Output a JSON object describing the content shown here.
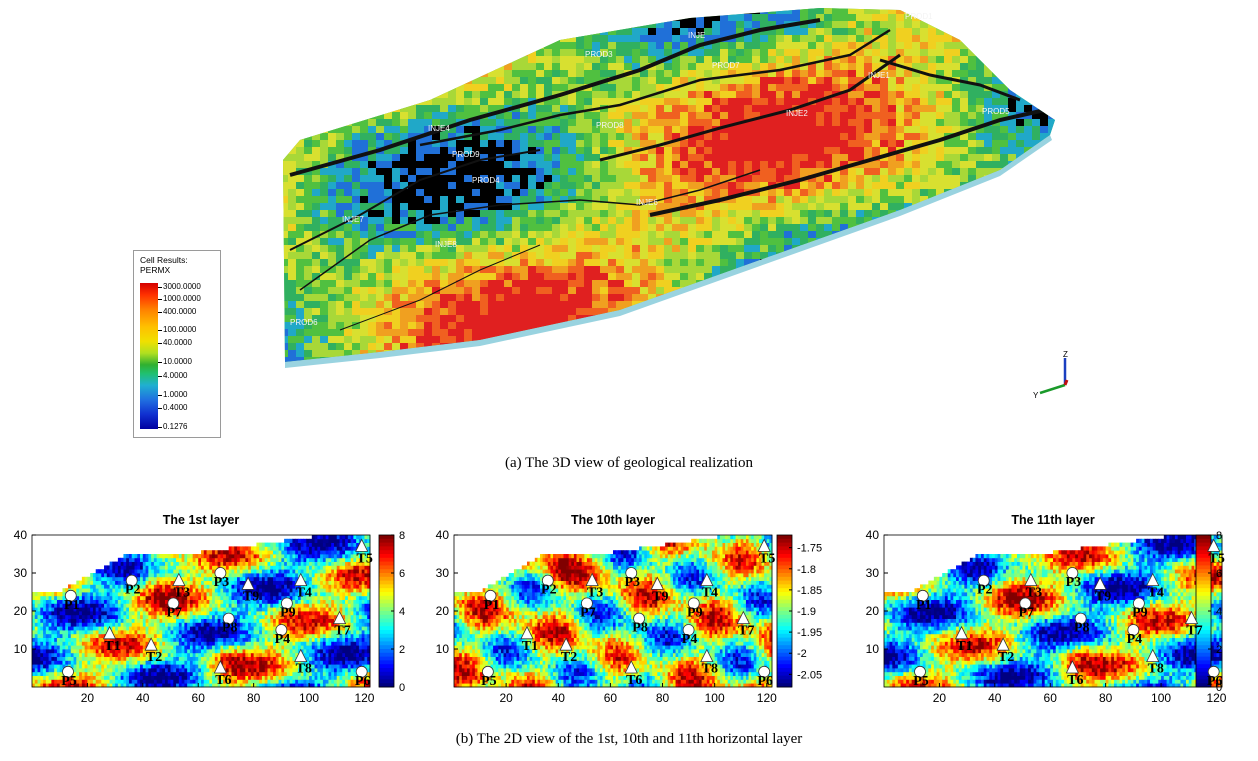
{
  "caption_a": "(a) The 3D view of geological realization",
  "caption_b": "(b) The 2D view of the 1st, 10th and 11th horizontal layer",
  "legend": {
    "title1": "Cell Results:",
    "title2": "PERMX",
    "ticks": [
      "3000.0000",
      "1000.0000",
      "400.0000",
      "100.0000",
      "40.0000",
      "10.0000",
      "4.0000",
      "1.0000",
      "0.4000",
      "0.1276"
    ]
  },
  "wells_3d": [
    "PROD3",
    "INJE",
    "PROD7",
    "INJE1",
    "PROD8",
    "INJE2",
    "PROD5",
    "INJE4",
    "PROD9",
    "PROD4",
    "INJE6",
    "INJE7",
    "INJE8",
    "PROD6",
    "PROD1"
  ],
  "axis_triad": {
    "z": "Z",
    "y": "Y"
  },
  "chart_data": [
    {
      "type": "heatmap",
      "title": "The 1st layer",
      "xticks": [
        20,
        40,
        60,
        80,
        100,
        120
      ],
      "yticks": [
        10,
        20,
        30,
        40
      ],
      "xlim": [
        0,
        122
      ],
      "ylim": [
        0,
        40
      ],
      "colorbar": {
        "min": 0,
        "max": 8,
        "ticks": [
          "0",
          "2",
          "4",
          "6",
          "8"
        ]
      },
      "producers": [
        {
          "label": "P1",
          "x": 14,
          "y": 24
        },
        {
          "label": "P2",
          "x": 36,
          "y": 28
        },
        {
          "label": "P3",
          "x": 68,
          "y": 30
        },
        {
          "label": "P4",
          "x": 90,
          "y": 15
        },
        {
          "label": "P5",
          "x": 13,
          "y": 4
        },
        {
          "label": "P6",
          "x": 119,
          "y": 4
        },
        {
          "label": "P7",
          "x": 51,
          "y": 22
        },
        {
          "label": "P8",
          "x": 71,
          "y": 18
        },
        {
          "label": "P9",
          "x": 92,
          "y": 22
        }
      ],
      "injectors": [
        {
          "label": "T1",
          "x": 28,
          "y": 14
        },
        {
          "label": "T2",
          "x": 43,
          "y": 11
        },
        {
          "label": "T3",
          "x": 53,
          "y": 28
        },
        {
          "label": "T4",
          "x": 97,
          "y": 28
        },
        {
          "label": "T5",
          "x": 119,
          "y": 37
        },
        {
          "label": "T6",
          "x": 68,
          "y": 5
        },
        {
          "label": "T7",
          "x": 111,
          "y": 18
        },
        {
          "label": "T8",
          "x": 97,
          "y": 8
        },
        {
          "label": "T9",
          "x": 78,
          "y": 27
        }
      ]
    },
    {
      "type": "heatmap",
      "title": "The 10th layer",
      "xticks": [
        20,
        40,
        60,
        80,
        100,
        120
      ],
      "yticks": [
        10,
        20,
        30,
        40
      ],
      "xlim": [
        0,
        122
      ],
      "ylim": [
        0,
        40
      ],
      "colorbar": {
        "min": -2.08,
        "max": -1.72,
        "ticks": [
          "-1.75",
          "-1.8",
          "-1.85",
          "-1.9",
          "-1.95",
          "-2",
          "-2.05"
        ]
      },
      "producers": [
        {
          "label": "P1",
          "x": 14,
          "y": 24
        },
        {
          "label": "P2",
          "x": 36,
          "y": 28
        },
        {
          "label": "P3",
          "x": 68,
          "y": 30
        },
        {
          "label": "P4",
          "x": 90,
          "y": 15
        },
        {
          "label": "P5",
          "x": 13,
          "y": 4
        },
        {
          "label": "P6",
          "x": 119,
          "y": 4
        },
        {
          "label": "P7",
          "x": 51,
          "y": 22
        },
        {
          "label": "P8",
          "x": 71,
          "y": 18
        },
        {
          "label": "P9",
          "x": 92,
          "y": 22
        }
      ],
      "injectors": [
        {
          "label": "T1",
          "x": 28,
          "y": 14
        },
        {
          "label": "T2",
          "x": 43,
          "y": 11
        },
        {
          "label": "T3",
          "x": 53,
          "y": 28
        },
        {
          "label": "T4",
          "x": 97,
          "y": 28
        },
        {
          "label": "T5",
          "x": 119,
          "y": 37
        },
        {
          "label": "T6",
          "x": 68,
          "y": 5
        },
        {
          "label": "T7",
          "x": 111,
          "y": 18
        },
        {
          "label": "T8",
          "x": 97,
          "y": 8
        },
        {
          "label": "T9",
          "x": 78,
          "y": 27
        }
      ]
    },
    {
      "type": "heatmap",
      "title": "The 11th layer",
      "xticks": [
        20,
        40,
        60,
        80,
        100,
        120
      ],
      "yticks": [
        10,
        20,
        30,
        40
      ],
      "xlim": [
        0,
        122
      ],
      "ylim": [
        0,
        40
      ],
      "colorbar": {
        "min": 0,
        "max": 8,
        "ticks": [
          "0",
          "2",
          "4",
          "6",
          "8"
        ]
      },
      "producers": [
        {
          "label": "P1",
          "x": 14,
          "y": 24
        },
        {
          "label": "P2",
          "x": 36,
          "y": 28
        },
        {
          "label": "P3",
          "x": 68,
          "y": 30
        },
        {
          "label": "P4",
          "x": 90,
          "y": 15
        },
        {
          "label": "P5",
          "x": 13,
          "y": 4
        },
        {
          "label": "P6",
          "x": 119,
          "y": 4
        },
        {
          "label": "P7",
          "x": 51,
          "y": 22
        },
        {
          "label": "P8",
          "x": 71,
          "y": 18
        },
        {
          "label": "P9",
          "x": 92,
          "y": 22
        }
      ],
      "injectors": [
        {
          "label": "T1",
          "x": 28,
          "y": 14
        },
        {
          "label": "T2",
          "x": 43,
          "y": 11
        },
        {
          "label": "T3",
          "x": 53,
          "y": 28
        },
        {
          "label": "T4",
          "x": 97,
          "y": 28
        },
        {
          "label": "T5",
          "x": 119,
          "y": 37
        },
        {
          "label": "T6",
          "x": 68,
          "y": 5
        },
        {
          "label": "T7",
          "x": 111,
          "y": 18
        },
        {
          "label": "T8",
          "x": 97,
          "y": 8
        },
        {
          "label": "T9",
          "x": 78,
          "y": 27
        }
      ]
    }
  ]
}
